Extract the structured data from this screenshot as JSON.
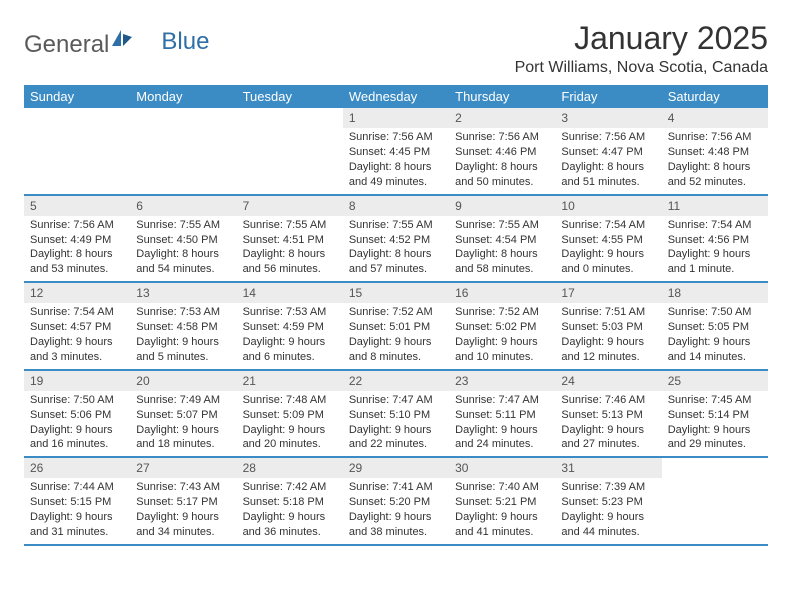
{
  "logo": {
    "text1": "General",
    "text2": "Blue"
  },
  "title": "January 2025",
  "location": "Port Williams, Nova Scotia, Canada",
  "colors": {
    "header_bg": "#3b8bc4",
    "header_text": "#ffffff",
    "daynum_bg": "#ececec",
    "border": "#3b8bc4",
    "text": "#333333",
    "logo_gray": "#5a5a5a",
    "logo_blue": "#2f6fa7"
  },
  "dow": [
    "Sunday",
    "Monday",
    "Tuesday",
    "Wednesday",
    "Thursday",
    "Friday",
    "Saturday"
  ],
  "weeks": [
    [
      null,
      null,
      null,
      {
        "n": "1",
        "sr": "7:56 AM",
        "ss": "4:45 PM",
        "dl": "8 hours and 49 minutes."
      },
      {
        "n": "2",
        "sr": "7:56 AM",
        "ss": "4:46 PM",
        "dl": "8 hours and 50 minutes."
      },
      {
        "n": "3",
        "sr": "7:56 AM",
        "ss": "4:47 PM",
        "dl": "8 hours and 51 minutes."
      },
      {
        "n": "4",
        "sr": "7:56 AM",
        "ss": "4:48 PM",
        "dl": "8 hours and 52 minutes."
      }
    ],
    [
      {
        "n": "5",
        "sr": "7:56 AM",
        "ss": "4:49 PM",
        "dl": "8 hours and 53 minutes."
      },
      {
        "n": "6",
        "sr": "7:55 AM",
        "ss": "4:50 PM",
        "dl": "8 hours and 54 minutes."
      },
      {
        "n": "7",
        "sr": "7:55 AM",
        "ss": "4:51 PM",
        "dl": "8 hours and 56 minutes."
      },
      {
        "n": "8",
        "sr": "7:55 AM",
        "ss": "4:52 PM",
        "dl": "8 hours and 57 minutes."
      },
      {
        "n": "9",
        "sr": "7:55 AM",
        "ss": "4:54 PM",
        "dl": "8 hours and 58 minutes."
      },
      {
        "n": "10",
        "sr": "7:54 AM",
        "ss": "4:55 PM",
        "dl": "9 hours and 0 minutes."
      },
      {
        "n": "11",
        "sr": "7:54 AM",
        "ss": "4:56 PM",
        "dl": "9 hours and 1 minute."
      }
    ],
    [
      {
        "n": "12",
        "sr": "7:54 AM",
        "ss": "4:57 PM",
        "dl": "9 hours and 3 minutes."
      },
      {
        "n": "13",
        "sr": "7:53 AM",
        "ss": "4:58 PM",
        "dl": "9 hours and 5 minutes."
      },
      {
        "n": "14",
        "sr": "7:53 AM",
        "ss": "4:59 PM",
        "dl": "9 hours and 6 minutes."
      },
      {
        "n": "15",
        "sr": "7:52 AM",
        "ss": "5:01 PM",
        "dl": "9 hours and 8 minutes."
      },
      {
        "n": "16",
        "sr": "7:52 AM",
        "ss": "5:02 PM",
        "dl": "9 hours and 10 minutes."
      },
      {
        "n": "17",
        "sr": "7:51 AM",
        "ss": "5:03 PM",
        "dl": "9 hours and 12 minutes."
      },
      {
        "n": "18",
        "sr": "7:50 AM",
        "ss": "5:05 PM",
        "dl": "9 hours and 14 minutes."
      }
    ],
    [
      {
        "n": "19",
        "sr": "7:50 AM",
        "ss": "5:06 PM",
        "dl": "9 hours and 16 minutes."
      },
      {
        "n": "20",
        "sr": "7:49 AM",
        "ss": "5:07 PM",
        "dl": "9 hours and 18 minutes."
      },
      {
        "n": "21",
        "sr": "7:48 AM",
        "ss": "5:09 PM",
        "dl": "9 hours and 20 minutes."
      },
      {
        "n": "22",
        "sr": "7:47 AM",
        "ss": "5:10 PM",
        "dl": "9 hours and 22 minutes."
      },
      {
        "n": "23",
        "sr": "7:47 AM",
        "ss": "5:11 PM",
        "dl": "9 hours and 24 minutes."
      },
      {
        "n": "24",
        "sr": "7:46 AM",
        "ss": "5:13 PM",
        "dl": "9 hours and 27 minutes."
      },
      {
        "n": "25",
        "sr": "7:45 AM",
        "ss": "5:14 PM",
        "dl": "9 hours and 29 minutes."
      }
    ],
    [
      {
        "n": "26",
        "sr": "7:44 AM",
        "ss": "5:15 PM",
        "dl": "9 hours and 31 minutes."
      },
      {
        "n": "27",
        "sr": "7:43 AM",
        "ss": "5:17 PM",
        "dl": "9 hours and 34 minutes."
      },
      {
        "n": "28",
        "sr": "7:42 AM",
        "ss": "5:18 PM",
        "dl": "9 hours and 36 minutes."
      },
      {
        "n": "29",
        "sr": "7:41 AM",
        "ss": "5:20 PM",
        "dl": "9 hours and 38 minutes."
      },
      {
        "n": "30",
        "sr": "7:40 AM",
        "ss": "5:21 PM",
        "dl": "9 hours and 41 minutes."
      },
      {
        "n": "31",
        "sr": "7:39 AM",
        "ss": "5:23 PM",
        "dl": "9 hours and 44 minutes."
      },
      null
    ]
  ],
  "labels": {
    "sunrise": "Sunrise:",
    "sunset": "Sunset:",
    "daylight": "Daylight:"
  }
}
